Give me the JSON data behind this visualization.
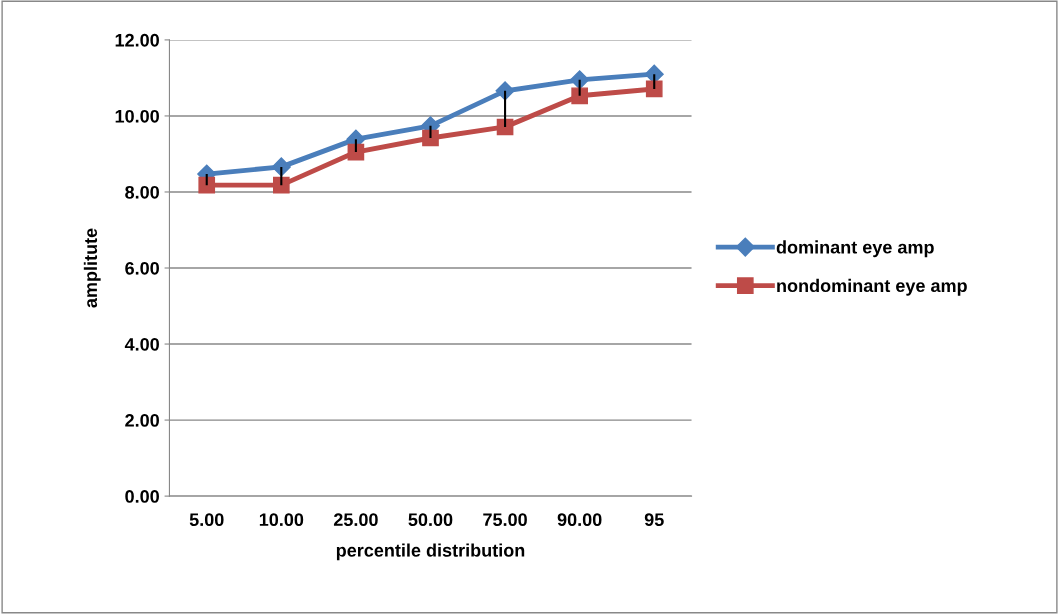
{
  "chart_data": {
    "type": "line",
    "xlabel": "percentile distribution",
    "ylabel": "amplitute",
    "categories": [
      "5.00",
      "10.00",
      "25.00",
      "50.00",
      "75.00",
      "90.00",
      "95"
    ],
    "series": [
      {
        "name": "dominant eye amp",
        "color": "#4a7ebb",
        "marker": "diamond",
        "values": [
          8.47,
          8.66,
          9.39,
          9.74,
          10.66,
          10.95,
          11.1
        ]
      },
      {
        "name": "nondominant eye amp",
        "color": "#be4b48",
        "marker": "square",
        "values": [
          8.18,
          8.18,
          9.05,
          9.42,
          9.71,
          10.53,
          10.71
        ],
        "errors": [
          [
            8.18,
            8.47
          ],
          [
            8.18,
            8.66
          ],
          [
            9.05,
            9.39
          ],
          [
            9.42,
            9.74
          ],
          [
            9.71,
            10.66
          ],
          [
            10.53,
            10.95
          ],
          [
            10.71,
            11.1
          ]
        ]
      }
    ],
    "ylim": [
      0,
      12
    ],
    "yticks": [
      {
        "value": 0,
        "label": "0.00"
      },
      {
        "value": 2,
        "label": "2.00"
      },
      {
        "value": 4,
        "label": "4.00"
      },
      {
        "value": 6,
        "label": "6.00"
      },
      {
        "value": 8,
        "label": "8.00"
      },
      {
        "value": 10,
        "label": "10.00"
      },
      {
        "value": 12,
        "label": "12.00"
      }
    ],
    "grid": "y",
    "legend": "right",
    "line_style": "solid"
  }
}
